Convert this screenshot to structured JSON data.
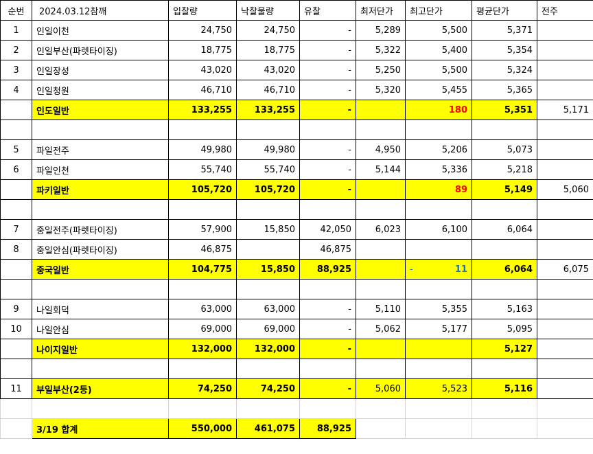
{
  "headers": [
    "순번",
    "2024.03.12참깨",
    "입찰량",
    "낙찰물량",
    "유찰",
    "최저단가",
    "최고단가",
    "평균단가",
    "전주"
  ],
  "colors": {
    "highlight": "#ffff00",
    "red": "#ff0000",
    "blue": "#1f6fc5"
  },
  "rows": [
    {
      "type": "item",
      "cells": [
        "1",
        "인일이천",
        "24,750",
        "24,750",
        "-",
        "5,289",
        "5,500",
        "5,371",
        ""
      ]
    },
    {
      "type": "item",
      "cells": [
        "2",
        "인일부산(파렛타이징)",
        "18,775",
        "18,775",
        "-",
        "5,322",
        "5,400",
        "5,354",
        ""
      ]
    },
    {
      "type": "item",
      "cells": [
        "3",
        "인일장성",
        "43,020",
        "43,020",
        "-",
        "5,250",
        "5,500",
        "5,324",
        ""
      ]
    },
    {
      "type": "item",
      "cells": [
        "4",
        "인일청원",
        "46,710",
        "46,710",
        "-",
        "5,320",
        "5,455",
        "5,365",
        ""
      ]
    },
    {
      "type": "sub",
      "cells": [
        "",
        "인도일반",
        "133,255",
        "133,255",
        "-",
        "",
        "180",
        "5,351",
        "5,171"
      ],
      "max_color": "red"
    },
    {
      "type": "blank",
      "cells": [
        "",
        "",
        "",
        "",
        "",
        "",
        "",
        "",
        ""
      ]
    },
    {
      "type": "item",
      "cells": [
        "5",
        "파일전주",
        "49,980",
        "49,980",
        "-",
        "4,950",
        "5,206",
        "5,073",
        ""
      ]
    },
    {
      "type": "item",
      "cells": [
        "6",
        "파일인천",
        "55,740",
        "55,740",
        "-",
        "5,144",
        "5,336",
        "5,218",
        ""
      ]
    },
    {
      "type": "sub",
      "cells": [
        "",
        "파키일반",
        "105,720",
        "105,720",
        "-",
        "",
        "89",
        "5,149",
        "5,060"
      ],
      "max_color": "red"
    },
    {
      "type": "blank",
      "cells": [
        "",
        "",
        "",
        "",
        "",
        "",
        "",
        "",
        ""
      ]
    },
    {
      "type": "item",
      "cells": [
        "7",
        "중일전주(파렛타이징)",
        "57,900",
        "15,850",
        "42,050",
        "6,023",
        "6,100",
        "6,064",
        ""
      ]
    },
    {
      "type": "item",
      "cells": [
        "8",
        "중일안심(파렛타이징)",
        "46,875",
        "",
        "46,875",
        "",
        "",
        "",
        ""
      ]
    },
    {
      "type": "sub",
      "cells": [
        "",
        "중국일반",
        "104,775",
        "15,850",
        "88,925",
        "",
        "11",
        "6,064",
        "6,075"
      ],
      "max_color": "blue",
      "max_prefix": "-"
    },
    {
      "type": "blank",
      "cells": [
        "",
        "",
        "",
        "",
        "",
        "",
        "",
        "",
        ""
      ]
    },
    {
      "type": "item",
      "cells": [
        "9",
        "나일회덕",
        "63,000",
        "63,000",
        "-",
        "5,110",
        "5,355",
        "5,163",
        ""
      ]
    },
    {
      "type": "item",
      "cells": [
        "10",
        "나일안심",
        "69,000",
        "69,000",
        "-",
        "5,062",
        "5,177",
        "5,095",
        ""
      ]
    },
    {
      "type": "sub",
      "cells": [
        "",
        "나이지일반",
        "132,000",
        "132,000",
        "-",
        "",
        "",
        "5,127",
        ""
      ]
    },
    {
      "type": "blank",
      "cells": [
        "",
        "",
        "",
        "",
        "",
        "",
        "",
        "",
        ""
      ]
    },
    {
      "type": "sub11",
      "cells": [
        "11",
        "부일부산(2등)",
        "74,250",
        "74,250",
        "-",
        "5,060",
        "5,523",
        "5,116",
        ""
      ]
    },
    {
      "type": "faint",
      "cells": [
        "",
        "",
        "",
        "",
        "",
        "",
        "",
        "",
        ""
      ]
    },
    {
      "type": "total",
      "cells": [
        "",
        "3/19 합계",
        "550,000",
        "461,075",
        "88,925",
        "",
        "",
        "",
        ""
      ]
    }
  ]
}
